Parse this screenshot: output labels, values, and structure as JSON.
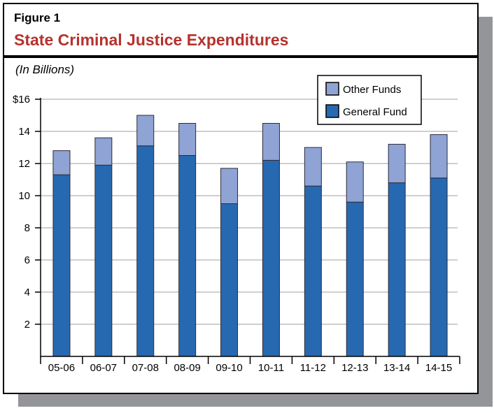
{
  "figure_label": "Figure 1",
  "chart_data": {
    "type": "bar",
    "stacked": true,
    "title": "State Criminal Justice Expenditures",
    "subtitle": "(In Billions)",
    "xlabel": "",
    "ylabel": "",
    "ylim": [
      0,
      16
    ],
    "yticks": [
      "2",
      "4",
      "6",
      "8",
      "10",
      "12",
      "14",
      "$16"
    ],
    "ytick_values": [
      2,
      4,
      6,
      8,
      10,
      12,
      14,
      16
    ],
    "grid": true,
    "legend_position": "top-right",
    "categories": [
      "05-06",
      "06-07",
      "07-08",
      "08-09",
      "09-10",
      "10-11",
      "11-12",
      "12-13",
      "13-14",
      "14-15"
    ],
    "series": [
      {
        "name": "General Fund",
        "color": "#2769b1",
        "values": [
          11.3,
          11.9,
          13.1,
          12.5,
          9.5,
          12.2,
          10.6,
          9.6,
          10.8,
          11.1
        ]
      },
      {
        "name": "Other Funds",
        "color": "#8fa3d4",
        "values": [
          1.5,
          1.7,
          1.9,
          2.0,
          2.2,
          2.3,
          2.4,
          2.5,
          2.4,
          2.7
        ]
      }
    ],
    "legend": [
      "Other Funds",
      "General Fund"
    ]
  }
}
